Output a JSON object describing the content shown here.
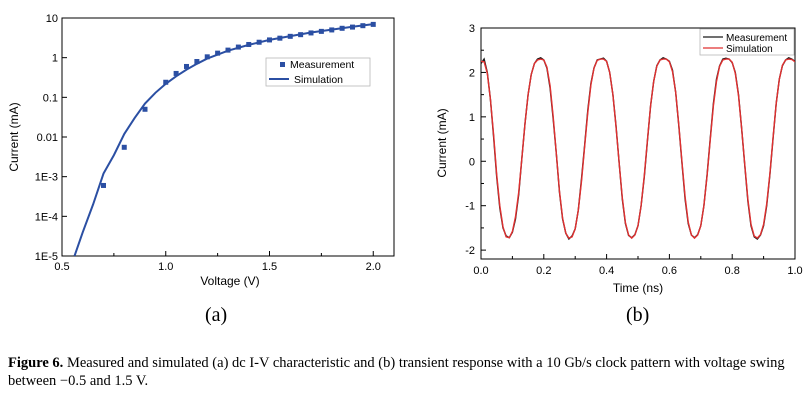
{
  "caption": {
    "label": "Figure 6.",
    "text": "Measured and simulated (a) dc I-V characteristic and (b) transient response with a 10 Gb/s clock pattern with voltage swing between −0.5 and 1.5 V."
  },
  "colors": {
    "measurement_a": "#2b4fa3",
    "simulation_a": "#2b4fa3",
    "measurement_b": "#1a1a1a",
    "simulation_b": "#e03030"
  },
  "chart_data": [
    {
      "panel": "(a)",
      "type": "scatter",
      "xlabel": "Voltage (V)",
      "ylabel": "Current (mA)",
      "xlim": [
        0.5,
        2.1
      ],
      "ylim": [
        1e-05,
        10
      ],
      "yscale": "log",
      "xticks": [
        0.5,
        1.0,
        1.5,
        2.0
      ],
      "xtick_labels": [
        "0.5",
        "1.0",
        "1.5",
        "2.0"
      ],
      "yticks": [
        1e-05,
        0.0001,
        0.001,
        0.01,
        0.1,
        1,
        10
      ],
      "ytick_labels": [
        "1E-5",
        "1E-4",
        "1E-3",
        "0.01",
        "0.1",
        "1",
        "10"
      ],
      "legend_position": "upper-right",
      "series": [
        {
          "name": "Measurement",
          "style": "markers-square",
          "x": [
            0.7,
            0.8,
            0.9,
            1.0,
            1.05,
            1.1,
            1.15,
            1.2,
            1.25,
            1.3,
            1.35,
            1.4,
            1.45,
            1.5,
            1.55,
            1.6,
            1.65,
            1.7,
            1.75,
            1.8,
            1.85,
            1.9,
            1.95,
            2.0
          ],
          "y": [
            0.0006,
            0.0055,
            0.05,
            0.24,
            0.4,
            0.6,
            0.8,
            1.05,
            1.3,
            1.55,
            1.85,
            2.15,
            2.45,
            2.8,
            3.1,
            3.45,
            3.8,
            4.2,
            4.6,
            5.0,
            5.5,
            5.9,
            6.4,
            6.9
          ]
        },
        {
          "name": "Simulation",
          "style": "line",
          "x": [
            0.56,
            0.6,
            0.65,
            0.7,
            0.75,
            0.8,
            0.85,
            0.9,
            0.95,
            1.0,
            1.05,
            1.1,
            1.15,
            1.2,
            1.3,
            1.4,
            1.5,
            1.6,
            1.7,
            1.8,
            1.9,
            2.0
          ],
          "y": [
            1e-05,
            4e-05,
            0.0002,
            0.0012,
            0.0035,
            0.012,
            0.03,
            0.07,
            0.13,
            0.22,
            0.34,
            0.5,
            0.7,
            0.95,
            1.5,
            2.1,
            2.8,
            3.5,
            4.3,
            5.1,
            6.0,
            7.0
          ]
        }
      ]
    },
    {
      "panel": "(b)",
      "type": "line",
      "xlabel": "Time (ns)",
      "ylabel": "Current (mA)",
      "xlim": [
        0.0,
        1.0
      ],
      "ylim": [
        -2.2,
        3.0
      ],
      "xticks": [
        0.0,
        0.2,
        0.4,
        0.6,
        0.8,
        1.0
      ],
      "xtick_labels": [
        "0.0",
        "0.2",
        "0.4",
        "0.6",
        "0.8",
        "1.0"
      ],
      "yticks": [
        -2,
        -1,
        0,
        1,
        2,
        3
      ],
      "ytick_labels": [
        "-2",
        "-1",
        "0",
        "1",
        "2",
        "3"
      ],
      "legend_position": "top-right",
      "series": [
        {
          "name": "Measurement",
          "x": [
            0.0,
            0.01,
            0.02,
            0.03,
            0.04,
            0.05,
            0.06,
            0.07,
            0.08,
            0.09,
            0.1,
            0.11,
            0.12,
            0.13,
            0.14,
            0.15,
            0.16,
            0.17,
            0.18,
            0.19,
            0.2,
            0.21,
            0.22,
            0.23,
            0.24,
            0.25,
            0.26,
            0.27,
            0.28,
            0.29,
            0.3,
            0.31,
            0.32,
            0.33,
            0.34,
            0.35,
            0.36,
            0.37,
            0.38,
            0.39,
            0.4,
            0.41,
            0.42,
            0.43,
            0.44,
            0.45,
            0.46,
            0.47,
            0.48,
            0.49,
            0.5,
            0.51,
            0.52,
            0.53,
            0.54,
            0.55,
            0.56,
            0.57,
            0.58,
            0.59,
            0.6,
            0.61,
            0.62,
            0.63,
            0.64,
            0.65,
            0.66,
            0.67,
            0.68,
            0.69,
            0.7,
            0.71,
            0.72,
            0.73,
            0.74,
            0.75,
            0.76,
            0.77,
            0.78,
            0.79,
            0.8,
            0.81,
            0.82,
            0.83,
            0.84,
            0.85,
            0.86,
            0.87,
            0.88,
            0.89,
            0.9,
            0.91,
            0.92,
            0.93,
            0.94,
            0.95,
            0.96,
            0.97,
            0.98,
            0.99,
            1.0
          ],
          "y": [
            2.2,
            2.3,
            2.0,
            1.4,
            0.55,
            -0.35,
            -1.05,
            -1.5,
            -1.68,
            -1.72,
            -1.6,
            -1.3,
            -0.75,
            0.05,
            0.85,
            1.5,
            1.95,
            2.2,
            2.3,
            2.33,
            2.28,
            2.1,
            1.65,
            0.95,
            0.15,
            -0.7,
            -1.3,
            -1.62,
            -1.75,
            -1.68,
            -1.52,
            -1.1,
            -0.4,
            0.35,
            1.15,
            1.75,
            2.1,
            2.28,
            2.3,
            2.32,
            2.25,
            2.0,
            1.5,
            0.8,
            -0.05,
            -0.85,
            -1.4,
            -1.67,
            -1.72,
            -1.65,
            -1.45,
            -1.0,
            -0.35,
            0.45,
            1.25,
            1.8,
            2.15,
            2.28,
            2.33,
            2.3,
            2.25,
            2.05,
            1.55,
            0.8,
            -0.05,
            -0.85,
            -1.4,
            -1.66,
            -1.72,
            -1.65,
            -1.45,
            -1.0,
            -0.3,
            0.5,
            1.3,
            1.85,
            2.15,
            2.3,
            2.32,
            2.3,
            2.22,
            2.0,
            1.5,
            0.75,
            -0.1,
            -0.9,
            -1.45,
            -1.7,
            -1.75,
            -1.66,
            -1.45,
            -1.0,
            -0.3,
            0.5,
            1.3,
            1.85,
            2.15,
            2.28,
            2.33,
            2.3,
            2.25
          ]
        },
        {
          "name": "Simulation",
          "x": [
            0.0,
            0.01,
            0.02,
            0.03,
            0.04,
            0.05,
            0.06,
            0.07,
            0.08,
            0.09,
            0.1,
            0.11,
            0.12,
            0.13,
            0.14,
            0.15,
            0.16,
            0.17,
            0.18,
            0.19,
            0.2,
            0.21,
            0.22,
            0.23,
            0.24,
            0.25,
            0.26,
            0.27,
            0.28,
            0.29,
            0.3,
            0.31,
            0.32,
            0.33,
            0.34,
            0.35,
            0.36,
            0.37,
            0.38,
            0.39,
            0.4,
            0.41,
            0.42,
            0.43,
            0.44,
            0.45,
            0.46,
            0.47,
            0.48,
            0.49,
            0.5,
            0.51,
            0.52,
            0.53,
            0.54,
            0.55,
            0.56,
            0.57,
            0.58,
            0.59,
            0.6,
            0.61,
            0.62,
            0.63,
            0.64,
            0.65,
            0.66,
            0.67,
            0.68,
            0.69,
            0.7,
            0.71,
            0.72,
            0.73,
            0.74,
            0.75,
            0.76,
            0.77,
            0.78,
            0.79,
            0.8,
            0.81,
            0.82,
            0.83,
            0.84,
            0.85,
            0.86,
            0.87,
            0.88,
            0.89,
            0.9,
            0.91,
            0.92,
            0.93,
            0.94,
            0.95,
            0.96,
            0.97,
            0.98,
            0.99,
            1.0
          ],
          "y": [
            2.25,
            2.24,
            1.98,
            1.4,
            0.6,
            -0.3,
            -1.0,
            -1.48,
            -1.7,
            -1.72,
            -1.58,
            -1.25,
            -0.7,
            0.05,
            0.85,
            1.5,
            1.95,
            2.2,
            2.28,
            2.3,
            2.28,
            2.12,
            1.7,
            1.0,
            0.15,
            -0.68,
            -1.28,
            -1.62,
            -1.73,
            -1.7,
            -1.52,
            -1.1,
            -0.45,
            0.32,
            1.1,
            1.72,
            2.1,
            2.27,
            2.3,
            2.3,
            2.25,
            2.0,
            1.5,
            0.78,
            -0.05,
            -0.82,
            -1.38,
            -1.66,
            -1.73,
            -1.66,
            -1.45,
            -1.0,
            -0.32,
            0.47,
            1.25,
            1.8,
            2.14,
            2.28,
            2.3,
            2.3,
            2.24,
            2.02,
            1.55,
            0.82,
            -0.02,
            -0.8,
            -1.37,
            -1.66,
            -1.73,
            -1.66,
            -1.45,
            -1.0,
            -0.32,
            0.47,
            1.25,
            1.8,
            2.14,
            2.28,
            2.3,
            2.3,
            2.23,
            1.98,
            1.48,
            0.75,
            -0.08,
            -0.86,
            -1.42,
            -1.68,
            -1.73,
            -1.65,
            -1.42,
            -0.96,
            -0.28,
            0.52,
            1.3,
            1.84,
            2.16,
            2.28,
            2.3,
            2.29,
            2.24
          ]
        }
      ]
    }
  ]
}
